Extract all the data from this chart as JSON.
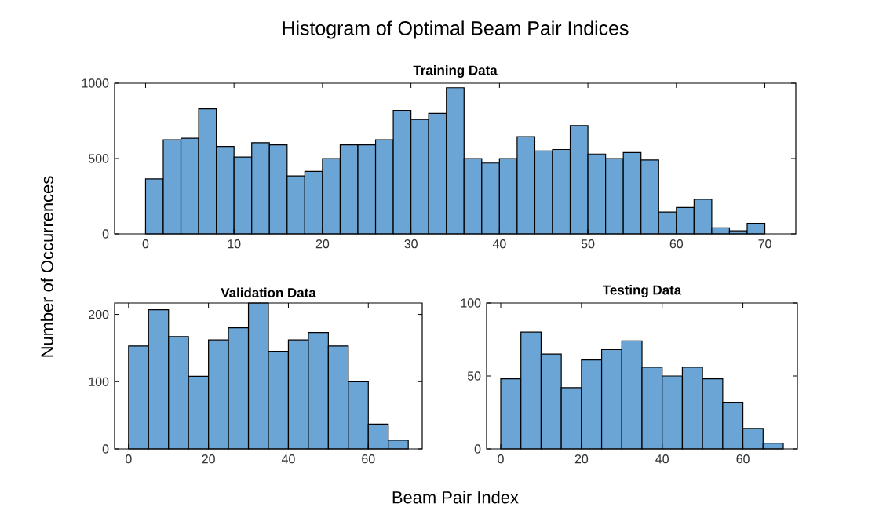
{
  "chart_data": [
    {
      "type": "histogram",
      "title": "Histogram of Optimal Beam Pair Indices",
      "subtitle": "Training Data",
      "color": "#6aa5d6",
      "bins": [
        0,
        2,
        4,
        6,
        8,
        10,
        12,
        14,
        16,
        18,
        20,
        22,
        24,
        26,
        28,
        30,
        32,
        34,
        36,
        38,
        40,
        42,
        44,
        46,
        48,
        50,
        52,
        54,
        56,
        58,
        60,
        62,
        64,
        66,
        68,
        70
      ],
      "values": [
        365,
        625,
        635,
        830,
        580,
        510,
        605,
        590,
        385,
        415,
        500,
        590,
        590,
        625,
        820,
        760,
        800,
        970,
        500,
        470,
        500,
        645,
        550,
        560,
        720,
        530,
        500,
        540,
        490,
        145,
        175,
        230,
        40,
        20,
        70
      ],
      "xlim": [
        -3.5,
        73.5
      ],
      "ylim": [
        0,
        1000
      ],
      "xticks": [
        0,
        10,
        20,
        30,
        40,
        50,
        60,
        70
      ],
      "yticks": [
        0,
        500,
        1000
      ],
      "grid": false
    },
    {
      "type": "histogram",
      "title": "Validation Data",
      "xlabel": "Beam Pair Index",
      "ylabel": "Number of Occurrences",
      "color": "#6aa5d6",
      "bins": [
        0,
        5,
        10,
        15,
        20,
        25,
        30,
        35,
        40,
        45,
        50,
        55,
        60,
        65,
        70
      ],
      "values": [
        153,
        207,
        167,
        108,
        162,
        180,
        217,
        145,
        162,
        173,
        153,
        100,
        37,
        13
      ],
      "xlim": [
        -3.5,
        73.5
      ],
      "ylim": [
        0,
        217
      ],
      "xticks": [
        0,
        20,
        40,
        60
      ],
      "yticks": [
        0,
        100,
        200
      ],
      "grid": false
    },
    {
      "type": "histogram",
      "title": "Testing Data",
      "color": "#6aa5d6",
      "bins": [
        0,
        5,
        10,
        15,
        20,
        25,
        30,
        35,
        40,
        45,
        50,
        55,
        60,
        65,
        70
      ],
      "values": [
        48,
        80,
        65,
        42,
        61,
        68,
        74,
        56,
        50,
        56,
        48,
        32,
        14,
        4
      ],
      "xlim": [
        -3.5,
        73.5
      ],
      "ylim": [
        0,
        100
      ],
      "xticks": [
        0,
        20,
        40,
        60
      ],
      "yticks": [
        0,
        50,
        100
      ],
      "grid": false
    }
  ]
}
